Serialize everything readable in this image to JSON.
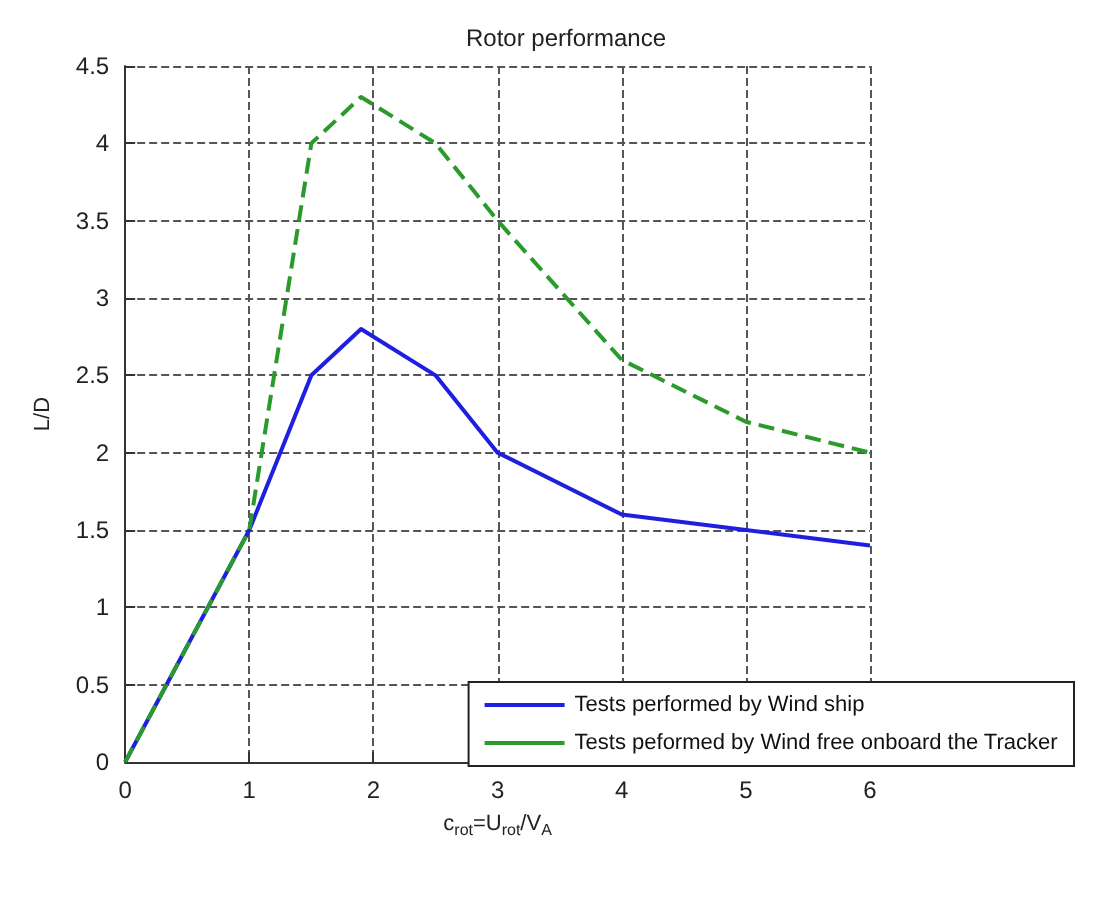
{
  "chart_data": {
    "type": "line",
    "title": "Rotor performance",
    "xlabel": "c$_{rot}$=U$_{rot}$/V$_{A}$",
    "ylabel": "L/D",
    "x": [
      0,
      0.5,
      1,
      1.5,
      1.9,
      2.5,
      3,
      4,
      5,
      6
    ],
    "series": [
      {
        "name": "Tests performed by Wind ship",
        "color": "#1f1fe0",
        "line_style": "solid",
        "values": [
          0,
          0.75,
          1.5,
          2.5,
          2.8,
          2.5,
          2.0,
          1.6,
          1.5,
          1.4
        ]
      },
      {
        "name": "Tests peformed by Wind free onboard the Tracker",
        "color": "#2a9a2a",
        "line_style": "dashed",
        "x": [
          0,
          1,
          1.5,
          1.9,
          2.5,
          3,
          4,
          5,
          6
        ],
        "values": [
          0,
          1.5,
          4.0,
          4.3,
          4.0,
          3.5,
          2.6,
          2.2,
          2.0
        ]
      }
    ],
    "xlim": [
      0,
      6
    ],
    "xticks": [
      0,
      1,
      2,
      3,
      4,
      5,
      6
    ],
    "ylim": [
      0,
      4.5
    ],
    "yticks": [
      0,
      0.5,
      1,
      1.5,
      2,
      2.5,
      3,
      3.5,
      4,
      4.5
    ],
    "grid": true,
    "legend": "bottom right",
    "marker": "none"
  }
}
